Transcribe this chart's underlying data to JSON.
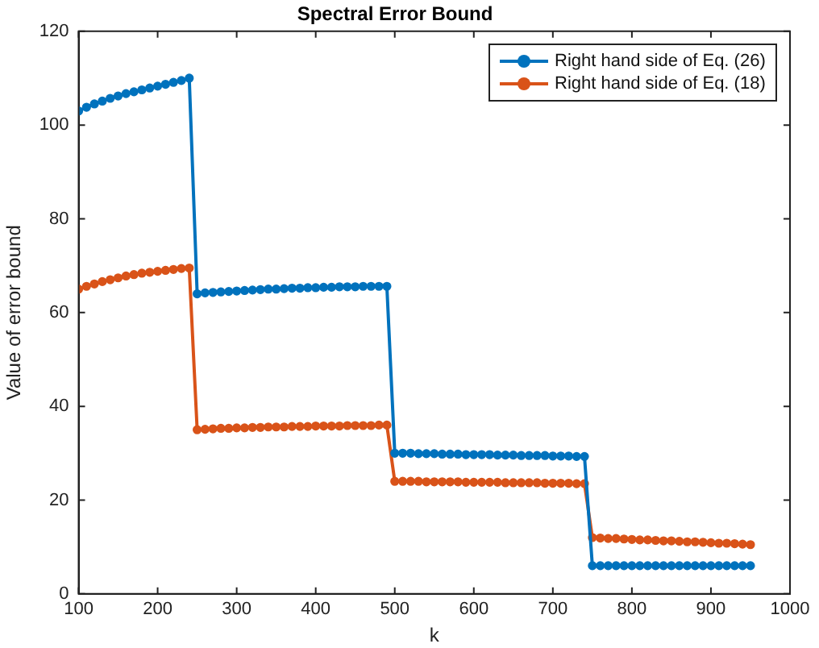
{
  "chart_data": {
    "type": "line",
    "title": "Spectral Error Bound",
    "xlabel": "k",
    "ylabel": "Value of error bound",
    "x": [
      100,
      110,
      120,
      130,
      140,
      150,
      160,
      170,
      180,
      190,
      200,
      210,
      220,
      230,
      240,
      250,
      260,
      270,
      280,
      290,
      300,
      310,
      320,
      330,
      340,
      350,
      360,
      370,
      380,
      390,
      400,
      410,
      420,
      430,
      440,
      450,
      460,
      470,
      480,
      490,
      500,
      510,
      520,
      530,
      540,
      550,
      560,
      570,
      580,
      590,
      600,
      610,
      620,
      630,
      640,
      650,
      660,
      670,
      680,
      690,
      700,
      710,
      720,
      730,
      740,
      750,
      760,
      770,
      780,
      790,
      800,
      810,
      820,
      830,
      840,
      850,
      860,
      870,
      880,
      890,
      900,
      910,
      920,
      930,
      940,
      950
    ],
    "series": [
      {
        "name": "Right hand side of Eq. (26)",
        "color": "#0072bd",
        "values": [
          103.0,
          103.8,
          104.5,
          105.1,
          105.7,
          106.2,
          106.7,
          107.1,
          107.5,
          107.9,
          108.3,
          108.7,
          109.1,
          109.5,
          110.0,
          64.0,
          64.2,
          64.3,
          64.4,
          64.5,
          64.6,
          64.7,
          64.8,
          64.9,
          65.0,
          65.0,
          65.1,
          65.2,
          65.2,
          65.3,
          65.3,
          65.4,
          65.4,
          65.5,
          65.5,
          65.5,
          65.6,
          65.6,
          65.6,
          65.6,
          30.0,
          30.0,
          30.0,
          29.9,
          29.9,
          29.9,
          29.8,
          29.8,
          29.8,
          29.7,
          29.7,
          29.7,
          29.7,
          29.6,
          29.6,
          29.6,
          29.5,
          29.5,
          29.5,
          29.5,
          29.4,
          29.4,
          29.4,
          29.3,
          29.3,
          6.0,
          6.0,
          6.0,
          6.0,
          6.0,
          6.0,
          6.0,
          6.0,
          6.0,
          6.0,
          6.0,
          6.0,
          6.0,
          6.0,
          6.0,
          6.0,
          6.0,
          6.0,
          6.0,
          6.0,
          6.0
        ]
      },
      {
        "name": "Right hand side of Eq. (18)",
        "color": "#d95319",
        "values": [
          65.0,
          65.6,
          66.1,
          66.6,
          67.0,
          67.4,
          67.8,
          68.1,
          68.4,
          68.6,
          68.8,
          69.0,
          69.2,
          69.4,
          69.5,
          35.0,
          35.1,
          35.2,
          35.3,
          35.3,
          35.4,
          35.4,
          35.5,
          35.5,
          35.6,
          35.6,
          35.6,
          35.7,
          35.7,
          35.7,
          35.8,
          35.8,
          35.8,
          35.8,
          35.9,
          35.9,
          35.9,
          35.9,
          36.0,
          36.0,
          24.0,
          24.0,
          24.0,
          24.0,
          23.9,
          23.9,
          23.9,
          23.9,
          23.9,
          23.8,
          23.8,
          23.8,
          23.8,
          23.8,
          23.7,
          23.7,
          23.7,
          23.7,
          23.7,
          23.6,
          23.6,
          23.6,
          23.6,
          23.5,
          23.5,
          12.0,
          11.9,
          11.8,
          11.8,
          11.7,
          11.6,
          11.5,
          11.5,
          11.4,
          11.3,
          11.3,
          11.2,
          11.1,
          11.1,
          11.0,
          10.9,
          10.8,
          10.8,
          10.7,
          10.6,
          10.5
        ]
      }
    ],
    "xlim": [
      100,
      1000
    ],
    "xticks": [
      100,
      200,
      300,
      400,
      500,
      600,
      700,
      800,
      900,
      1000
    ],
    "ylim": [
      0,
      120
    ],
    "yticks": [
      0,
      20,
      40,
      60,
      80,
      100,
      120
    ],
    "grid": false,
    "legend": "top right",
    "marker": "circle",
    "line_style": "solid"
  }
}
